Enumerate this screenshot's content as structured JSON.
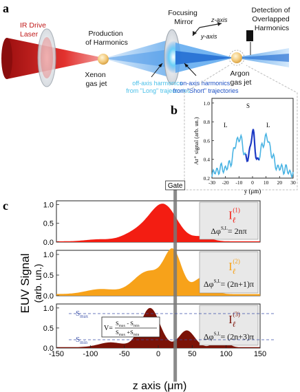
{
  "panel_a": {
    "letter": "a",
    "laser_label": [
      "IR Drive",
      "Laser"
    ],
    "production_label": [
      "Production",
      "of Harmonics"
    ],
    "xenon_label": [
      "Xenon",
      "gas jet"
    ],
    "mirror_label": [
      "Focusing",
      "Mirror"
    ],
    "z_axis": "z-axis",
    "y_axis": "y-axis",
    "detection_label": [
      "Detection of",
      "Overlapped",
      "Harmonics"
    ],
    "argon_label": [
      "Argon",
      "gas jet"
    ],
    "off_axis_label": [
      "off-axis harmonics",
      "from \"Long\" trajectories"
    ],
    "on_axis_label": [
      "on-axis harmonics",
      "from \"Short\" trajectories"
    ]
  },
  "panel_b": {
    "letter": "b",
    "ylabel": "Ar⁺ signal (arb. un.)",
    "xlabel": "y (μm)",
    "label_L": "L",
    "label_S": "S",
    "yticks": [
      "0.2",
      "0.4",
      "0.6",
      "0.8",
      "1.0"
    ],
    "xticks": [
      "-30",
      "-20",
      "-10",
      "0",
      "10",
      "20",
      "30"
    ]
  },
  "panel_c": {
    "letter": "c",
    "ylabel_1": "EUV Signal",
    "ylabel_2": "(arb. un.)",
    "xlabel": "z axis (μm)",
    "gate_label": "Gate",
    "xticks": [
      "-150",
      "-100",
      "-50",
      "0",
      "50",
      "100",
      "150"
    ],
    "yticks": [
      "0.0",
      "0.5",
      "1.0"
    ],
    "subplots": [
      {
        "I": "I",
        "sub": "ℓ",
        "sup": "(1)",
        "phase": "Δφ",
        "phase_sup": "S,L",
        "phase_rhs": "= 2nπ",
        "color": "#f31d12"
      },
      {
        "I": "I",
        "sub": "ℓ",
        "sup": "(2)",
        "phase": "Δφ",
        "phase_sup": "S,L",
        "phase_rhs": "= (2n+1)π",
        "color": "#f7a21a"
      },
      {
        "I": "I",
        "sub": "ℓ",
        "sup": "(3)",
        "phase": "Δφ",
        "phase_sup": "S,L",
        "phase_rhs": "= (2n+3)π",
        "color": "#7b1207"
      }
    ],
    "smax": "S",
    "smax_sub": "max",
    "smin": "S",
    "smin_sub": "min",
    "visibility_lhs": "V=",
    "visibility_num": "S",
    "visibility_num_sub1": "max",
    "visibility_num_op": " - S",
    "visibility_num_sub2": "min",
    "visibility_den": "S",
    "visibility_den_sub1": "max",
    "visibility_den_op": " +S",
    "visibility_den_sub2": "min"
  }
}
